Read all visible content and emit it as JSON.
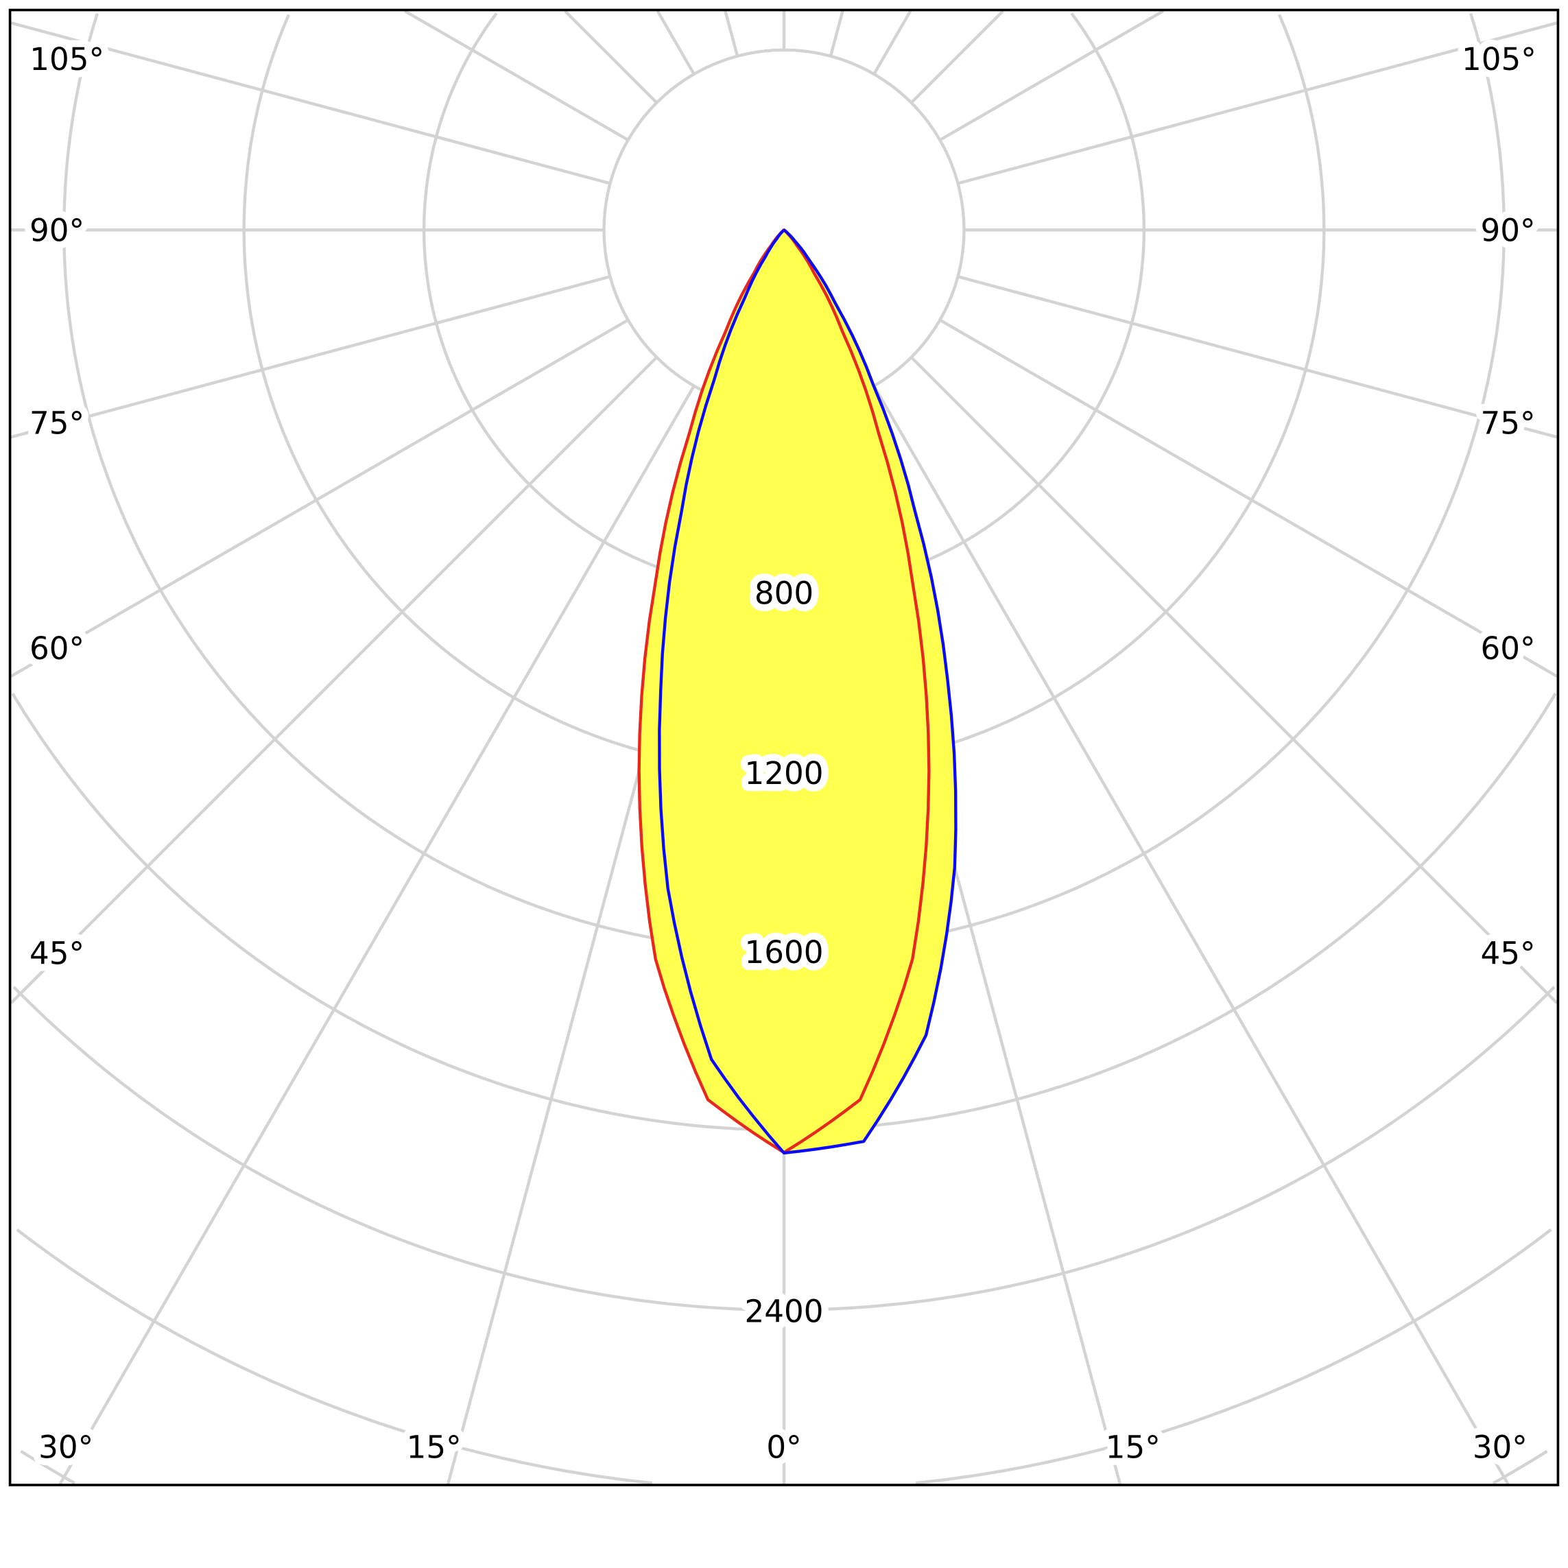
{
  "chart_data": {
    "type": "polar",
    "title": "",
    "angle_unit": "degrees",
    "angle_zero": "bottom",
    "angle_labels": [
      "105°",
      "90°",
      "75°",
      "60°",
      "45°",
      "30°",
      "15°",
      "0°",
      "15°",
      "30°",
      "45°",
      "60°",
      "75°",
      "90°",
      "105°"
    ],
    "radial_labels": [
      "800",
      "1200",
      "1600",
      "2400"
    ],
    "radial_range": [
      0,
      3600
    ],
    "radial_ring_step": 400,
    "angular_grid_step": 15,
    "grid": true,
    "fill_color": "#ffff50",
    "grid_color": "#d3d3d3",
    "series": [
      {
        "color": "#e8281e",
        "angles": [
          -90,
          -85,
          -80,
          -75,
          -70,
          -65,
          -60,
          -55,
          -50,
          -45,
          -40,
          -35,
          -30,
          -25,
          -20,
          -15,
          -10,
          -5,
          0,
          5,
          10,
          15,
          20,
          25,
          30,
          35,
          40,
          45,
          50,
          55,
          60,
          65,
          70,
          75,
          80,
          85,
          90
        ],
        "values": [
          0,
          0,
          0,
          0,
          0,
          0,
          0,
          1,
          4,
          14,
          44,
          116,
          258,
          497,
          837,
          1245,
          1645,
          1940,
          2050,
          1940,
          1645,
          1245,
          837,
          497,
          258,
          116,
          44,
          14,
          4,
          1,
          0,
          0,
          0,
          0,
          0,
          0,
          0
        ]
      },
      {
        "color": "#0a0aff",
        "angles": [
          -90,
          -85,
          -80,
          -75,
          -70,
          -65,
          -60,
          -55,
          -50,
          -45,
          -40,
          -35,
          -30,
          -25,
          -20,
          -15,
          -10,
          -5,
          0,
          5,
          10,
          15,
          20,
          25,
          30,
          35,
          40,
          45,
          50,
          55,
          60,
          65,
          70,
          75,
          80,
          85,
          90
        ],
        "values": [
          0,
          0,
          0,
          0,
          0,
          0,
          0,
          0,
          2,
          7,
          24,
          71,
          175,
          367,
          666,
          1059,
          1486,
          1850,
          2051,
          2033,
          1817,
          1466,
          1062,
          688,
          395,
          199,
          87,
          32,
          10,
          3,
          1,
          0,
          0,
          0,
          0,
          0,
          0
        ]
      }
    ]
  }
}
